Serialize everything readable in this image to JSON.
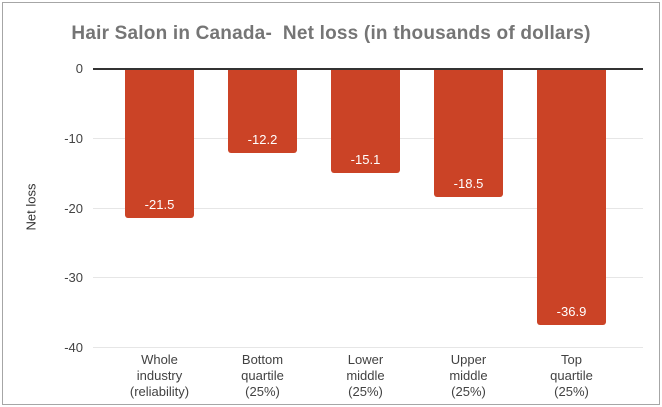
{
  "chart_data": {
    "type": "bar",
    "title": "Hair Salon in Canada-  Net loss (in thousands of dollars)",
    "categories": [
      "Whole\nindustry\n(reliability)",
      "Bottom\nquartile\n(25%)",
      "Lower\nmiddle\n(25%)",
      "Upper\nmiddle\n(25%)",
      "Top\nquartile\n(25%)"
    ],
    "values": [
      -21.5,
      -12.2,
      -15.1,
      -18.5,
      -36.9
    ],
    "value_labels": [
      "-21.5",
      "-12.2",
      "-15.1",
      "-18.5",
      "-36.9"
    ],
    "xlabel": "",
    "ylabel": "Net loss",
    "ylim": [
      -40,
      0
    ],
    "yticks": [
      0,
      -10,
      -20,
      -30,
      -40
    ],
    "grid": true,
    "legend_position": "none",
    "bar_color": "#cb4326",
    "value_label_color": "#ffffff",
    "title_color": "#757575",
    "axis_tick_color": "#444444",
    "category_label_color": "#424242",
    "gridline_color": "#e6e6e6",
    "zero_line_color": "#333333"
  }
}
